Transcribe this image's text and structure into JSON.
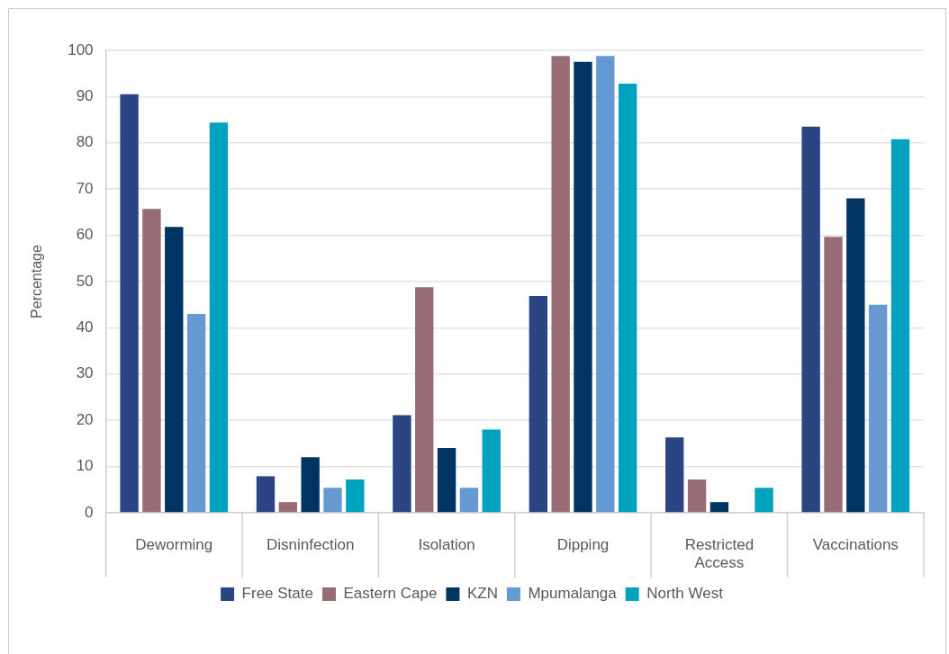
{
  "chart_data": {
    "type": "bar",
    "ylabel": "Percentage",
    "categories": [
      "Deworming",
      "Disninfection",
      "Isolation",
      "Dipping",
      "Restricted Access",
      "Vaccinations"
    ],
    "series": [
      {
        "name": "Free State",
        "color": "#2b4483",
        "values": [
          90.5,
          7.9,
          21.1,
          46.9,
          16.3,
          83.5
        ]
      },
      {
        "name": "Eastern Cape",
        "color": "#976c74",
        "values": [
          65.7,
          2.3,
          48.8,
          98.8,
          7.2,
          59.7
        ]
      },
      {
        "name": "KZN",
        "color": "#003462",
        "values": [
          61.8,
          12.0,
          14.0,
          97.5,
          2.3,
          68.0
        ]
      },
      {
        "name": "Mpumalanga",
        "color": "#6699d2",
        "values": [
          43.0,
          5.4,
          5.4,
          98.8,
          0,
          45.0
        ]
      },
      {
        "name": "North West",
        "color": "#00a2bf",
        "values": [
          84.4,
          7.2,
          18.0,
          92.8,
          5.4,
          80.8
        ]
      }
    ],
    "ylim": [
      0,
      100
    ],
    "yticks": [
      0,
      10,
      20,
      30,
      40,
      50,
      60,
      70,
      80,
      90,
      100
    ],
    "grid": "y",
    "legend": "bottom"
  }
}
